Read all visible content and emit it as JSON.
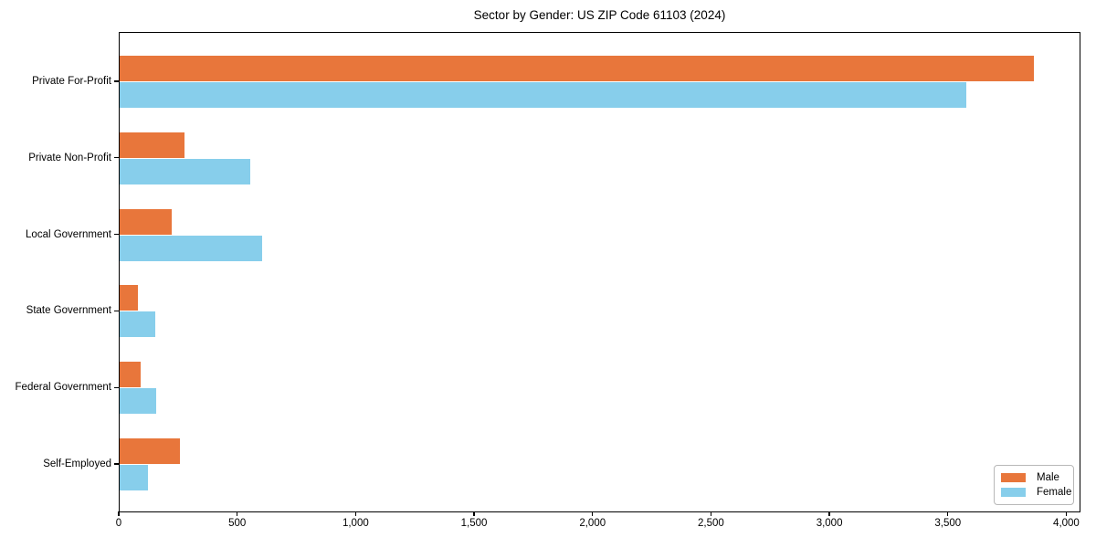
{
  "title": "Sector by Gender: US ZIP Code 61103 (2024)",
  "colors": {
    "male": "#e8763b",
    "female": "#87ceeb",
    "axis": "#000000",
    "background": "#ffffff",
    "legend_border": "#b8b8b8"
  },
  "legend": {
    "position": "lower right",
    "items": [
      {
        "label": "Male",
        "color": "#e8763b"
      },
      {
        "label": "Female",
        "color": "#87ceeb"
      }
    ]
  },
  "chart_data": {
    "type": "bar",
    "orientation": "horizontal",
    "title": "Sector by Gender: US ZIP Code 61103 (2024)",
    "xlabel": "",
    "ylabel": "",
    "categories": [
      "Private For-Profit",
      "Private Non-Profit",
      "Local Government",
      "State Government",
      "Federal Government",
      "Self-Employed"
    ],
    "series": [
      {
        "name": "Male",
        "color": "#e8763b",
        "values": [
          3860,
          275,
          220,
          75,
          90,
          255
        ]
      },
      {
        "name": "Female",
        "color": "#87ceeb",
        "values": [
          3575,
          550,
          600,
          150,
          155,
          120
        ]
      }
    ],
    "xlim": [
      0,
      4060
    ],
    "xtick_values": [
      0,
      500,
      1000,
      1500,
      2000,
      2500,
      3000,
      3500,
      4000
    ],
    "xtick_labels": [
      "0",
      "500",
      "1,000",
      "1,500",
      "2,000",
      "2,500",
      "3,000",
      "3,500",
      "4,000"
    ],
    "grid": false,
    "legend_position": "lower right"
  }
}
